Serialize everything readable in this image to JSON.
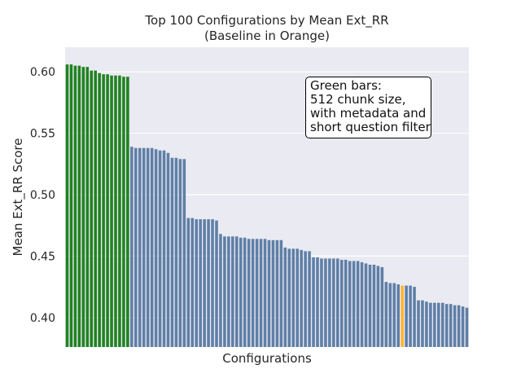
{
  "chart_data": {
    "type": "bar",
    "title_line1": "Top 100 Configurations by Mean Ext_RR",
    "title_line2": "(Baseline in Orange)",
    "xlabel": "Configurations",
    "ylabel": "Mean Ext_RR Score",
    "ylim": [
      0.376,
      0.62
    ],
    "yticks": [
      "0.40",
      "0.45",
      "0.50",
      "0.55",
      "0.60"
    ],
    "grid": true,
    "colors": {
      "highlight": "#218221",
      "default": "#5f7fa6",
      "baseline": "#ffb42d"
    },
    "annotation": {
      "lines": [
        "Green bars:",
        "512 chunk size,",
        "with metadata and",
        "short question filter"
      ]
    },
    "values": [
      0.606,
      0.606,
      0.605,
      0.605,
      0.604,
      0.604,
      0.601,
      0.601,
      0.599,
      0.598,
      0.598,
      0.597,
      0.597,
      0.597,
      0.596,
      0.596,
      0.539,
      0.538,
      0.538,
      0.538,
      0.538,
      0.538,
      0.537,
      0.536,
      0.536,
      0.534,
      0.53,
      0.53,
      0.529,
      0.529,
      0.481,
      0.481,
      0.48,
      0.48,
      0.48,
      0.48,
      0.48,
      0.479,
      0.468,
      0.466,
      0.466,
      0.466,
      0.466,
      0.465,
      0.465,
      0.464,
      0.464,
      0.464,
      0.464,
      0.464,
      0.463,
      0.463,
      0.463,
      0.463,
      0.457,
      0.456,
      0.456,
      0.456,
      0.455,
      0.454,
      0.454,
      0.449,
      0.449,
      0.448,
      0.448,
      0.448,
      0.448,
      0.448,
      0.447,
      0.447,
      0.446,
      0.446,
      0.446,
      0.445,
      0.444,
      0.443,
      0.443,
      0.442,
      0.441,
      0.429,
      0.428,
      0.428,
      0.427,
      0.426,
      0.426,
      0.426,
      0.425,
      0.414,
      0.414,
      0.413,
      0.412,
      0.412,
      0.412,
      0.412,
      0.411,
      0.411,
      0.41,
      0.41,
      0.409,
      0.408
    ],
    "bar_groups": [
      {
        "color": "highlight",
        "from": 0,
        "to": 15
      },
      {
        "color": "default",
        "from": 16,
        "to": 82
      },
      {
        "color": "baseline",
        "from": 83,
        "to": 83
      },
      {
        "color": "default",
        "from": 84,
        "to": 99
      }
    ]
  }
}
